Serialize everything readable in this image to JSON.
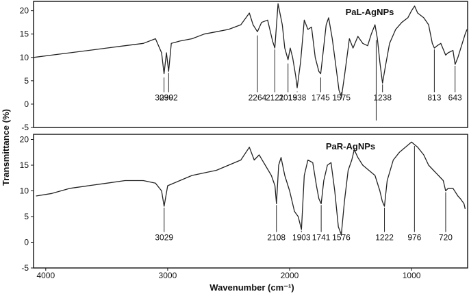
{
  "chart_data": {
    "type": "line",
    "xlabel": "Wavenumber (cm⁻¹)",
    "ylabel": "Transmittance (%)",
    "xlim": [
      4100,
      540
    ],
    "x_ticks": [
      4000,
      3000,
      2000,
      1000
    ],
    "x_reversed": true,
    "panels": [
      {
        "title": "PaL-AgNPs",
        "ylim": [
          -5,
          22
        ],
        "y_ticks": [
          -5,
          0,
          5,
          10,
          15,
          20
        ],
        "series": [
          {
            "points": [
              [
                4100,
                10
              ],
              [
                3950,
                10.5
              ],
              [
                3800,
                11
              ],
              [
                3650,
                11.5
              ],
              [
                3500,
                12
              ],
              [
                3350,
                12.5
              ],
              [
                3200,
                13
              ],
              [
                3100,
                14
              ],
              [
                3050,
                11
              ],
              [
                3030,
                6.5
              ],
              [
                3010,
                11
              ],
              [
                2992,
                7
              ],
              [
                2970,
                13
              ],
              [
                2900,
                13.5
              ],
              [
                2800,
                14
              ],
              [
                2700,
                15
              ],
              [
                2600,
                15.5
              ],
              [
                2500,
                16
              ],
              [
                2400,
                17
              ],
              [
                2330,
                19.5
              ],
              [
                2300,
                17
              ],
              [
                2264,
                15.5
              ],
              [
                2230,
                17.5
              ],
              [
                2180,
                18
              ],
              [
                2140,
                13.5
              ],
              [
                2121,
                12
              ],
              [
                2095,
                21.5
              ],
              [
                2060,
                17
              ],
              [
                2040,
                12
              ],
              [
                2013,
                9.5
              ],
              [
                1995,
                12
              ],
              [
                1975,
                10
              ],
              [
                1950,
                6
              ],
              [
                1938,
                3.5
              ],
              [
                1910,
                9
              ],
              [
                1880,
                18
              ],
              [
                1850,
                16
              ],
              [
                1820,
                16.5
              ],
              [
                1790,
                10
              ],
              [
                1760,
                7
              ],
              [
                1745,
                6.5
              ],
              [
                1730,
                10
              ],
              [
                1700,
                17
              ],
              [
                1680,
                18.5
              ],
              [
                1650,
                14
              ],
              [
                1620,
                8
              ],
              [
                1595,
                3
              ],
              [
                1575,
                1.5
              ],
              [
                1550,
                6
              ],
              [
                1510,
                14
              ],
              [
                1480,
                12
              ],
              [
                1440,
                14.5
              ],
              [
                1400,
                13
              ],
              [
                1360,
                12.5
              ],
              [
                1330,
                15
              ],
              [
                1300,
                17
              ],
              [
                1280,
                14
              ],
              [
                1260,
                9
              ],
              [
                1238,
                4.5
              ],
              [
                1215,
                8
              ],
              [
                1180,
                13
              ],
              [
                1130,
                16
              ],
              [
                1080,
                17.5
              ],
              [
                1030,
                18.5
              ],
              [
                1000,
                20
              ],
              [
                975,
                21
              ],
              [
                950,
                19.5
              ],
              [
                900,
                18.5
              ],
              [
                860,
                17
              ],
              [
                830,
                13
              ],
              [
                813,
                12
              ],
              [
                790,
                12.5
              ],
              [
                760,
                13
              ],
              [
                720,
                10.5
              ],
              [
                700,
                11
              ],
              [
                660,
                11.5
              ],
              [
                643,
                8.5
              ],
              [
                620,
                10
              ],
              [
                590,
                12.5
              ],
              [
                560,
                15
              ],
              [
                545,
                16
              ]
            ]
          }
        ],
        "peak_labels": [
          {
            "x": 3030,
            "label": "3030",
            "tip_y": 6
          },
          {
            "x": 2992,
            "label": "2992",
            "tip_y": 7
          },
          {
            "x": 2264,
            "label": "2264",
            "tip_y": 15
          },
          {
            "x": 2121,
            "label": "2121",
            "tip_y": 12
          },
          {
            "x": 2013,
            "label": "2013",
            "tip_y": 9
          },
          {
            "x": 1938,
            "label": "1938",
            "tip_y": 3
          },
          {
            "x": 1745,
            "label": "1745",
            "tip_y": 6
          },
          {
            "x": 1575,
            "label": "1575",
            "tip_y": 1.5
          },
          {
            "x": 1290,
            "label": "",
            "tip_y": 14
          },
          {
            "x": 1238,
            "label": "1238",
            "tip_y": 4.5
          },
          {
            "x": 813,
            "label": "813",
            "tip_y": 12
          },
          {
            "x": 643,
            "label": "643",
            "tip_y": 8.5
          }
        ]
      },
      {
        "title": "PaR-AgNPs",
        "ylim": [
          -5,
          21
        ],
        "y_ticks": [
          -5,
          0,
          5,
          10,
          15,
          20
        ],
        "series": [
          {
            "points": [
              [
                4080,
                9
              ],
              [
                3950,
                9.5
              ],
              [
                3800,
                10.5
              ],
              [
                3650,
                11
              ],
              [
                3500,
                11.5
              ],
              [
                3350,
                12
              ],
              [
                3200,
                12
              ],
              [
                3100,
                11.5
              ],
              [
                3050,
                10
              ],
              [
                3029,
                7
              ],
              [
                3000,
                11
              ],
              [
                2900,
                12
              ],
              [
                2800,
                13
              ],
              [
                2700,
                13.5
              ],
              [
                2600,
                14
              ],
              [
                2500,
                15
              ],
              [
                2400,
                16
              ],
              [
                2330,
                18.5
              ],
              [
                2290,
                16
              ],
              [
                2250,
                17
              ],
              [
                2200,
                15
              ],
              [
                2150,
                13
              ],
              [
                2120,
                11
              ],
              [
                2108,
                7.5
              ],
              [
                2090,
                15
              ],
              [
                2070,
                16.5
              ],
              [
                2040,
                13
              ],
              [
                2000,
                10
              ],
              [
                1960,
                6
              ],
              [
                1930,
                5
              ],
              [
                1903,
                2.5
              ],
              [
                1880,
                13
              ],
              [
                1850,
                16
              ],
              [
                1810,
                15.5
              ],
              [
                1780,
                11
              ],
              [
                1760,
                8.5
              ],
              [
                1741,
                7.5
              ],
              [
                1720,
                12
              ],
              [
                1690,
                15
              ],
              [
                1660,
                15.5
              ],
              [
                1630,
                10
              ],
              [
                1600,
                3
              ],
              [
                1576,
                1.5
              ],
              [
                1550,
                8
              ],
              [
                1520,
                14
              ],
              [
                1490,
                16
              ],
              [
                1470,
                18
              ],
              [
                1440,
                16.5
              ],
              [
                1400,
                15
              ],
              [
                1350,
                14
              ],
              [
                1300,
                13
              ],
              [
                1260,
                10
              ],
              [
                1240,
                8
              ],
              [
                1222,
                7
              ],
              [
                1200,
                12
              ],
              [
                1150,
                16
              ],
              [
                1100,
                17.5
              ],
              [
                1050,
                18.5
              ],
              [
                1000,
                19.5
              ],
              [
                976,
                19
              ],
              [
                950,
                18.5
              ],
              [
                900,
                17
              ],
              [
                860,
                15
              ],
              [
                820,
                14
              ],
              [
                780,
                13
              ],
              [
                740,
                12
              ],
              [
                720,
                10
              ],
              [
                700,
                10.5
              ],
              [
                660,
                10.5
              ],
              [
                620,
                9
              ],
              [
                600,
                8.5
              ],
              [
                570,
                7.5
              ],
              [
                560,
                6.5
              ]
            ]
          }
        ],
        "peak_labels": [
          {
            "x": 3029,
            "label": "3029",
            "tip_y": 7
          },
          {
            "x": 2108,
            "label": "2108",
            "tip_y": 7.5
          },
          {
            "x": 1903,
            "label": "1903",
            "tip_y": 2.5
          },
          {
            "x": 1741,
            "label": "1741",
            "tip_y": 7.5
          },
          {
            "x": 1576,
            "label": "1576",
            "tip_y": 1.5
          },
          {
            "x": 1222,
            "label": "1222",
            "tip_y": 7
          },
          {
            "x": 976,
            "label": "976",
            "tip_y": 19
          },
          {
            "x": 720,
            "label": "720",
            "tip_y": 10
          }
        ]
      }
    ],
    "colors": {
      "line": "#222222",
      "axis": "#111111"
    }
  }
}
